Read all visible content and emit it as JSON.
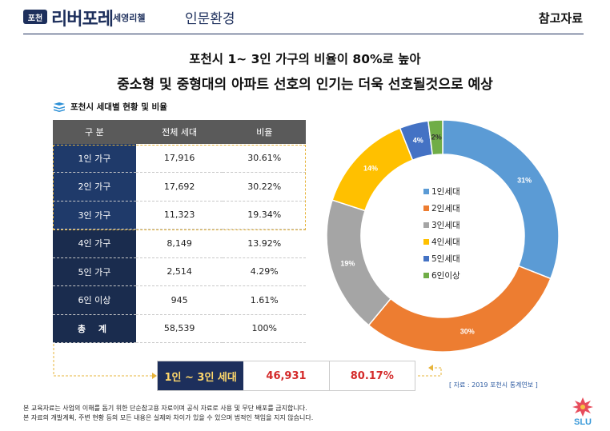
{
  "header": {
    "badge": "포천",
    "brand": "리버포레",
    "brand_sub": "세영리첼",
    "section": "인문환경",
    "tag": "참고자료"
  },
  "titles": {
    "line1": "포천시 1~ 3인 가구의 비율이 80%로 높아",
    "line2": "중소형 및 중형대의 아파트 선호의 인기는 더욱 선호될것으로 예상"
  },
  "subhead": "포천시 세대별 현황 및 비율",
  "table": {
    "headers": [
      "구 분",
      "전체 세대",
      "비율"
    ],
    "rows": [
      [
        "1인 가구",
        "17,916",
        "30.61%"
      ],
      [
        "2인 가구",
        "17,692",
        "30.22%"
      ],
      [
        "3인 가구",
        "11,323",
        "19.34%"
      ],
      [
        "4인 가구",
        "8,149",
        "13.92%"
      ],
      [
        "5인 가구",
        "2,514",
        "4.29%"
      ],
      [
        "6인 이상",
        "945",
        "1.61%"
      ],
      [
        "총 계",
        "58,539",
        "100%"
      ]
    ]
  },
  "summary": {
    "label": "1인 ~ 3인 세대",
    "value": "46,931",
    "percent": "80.17%"
  },
  "source": "[ 자료 : 2019 포천시 통계연보 ]",
  "notes": [
    "본 교육자료는 사업의 이해를 돕기 위한 단순참고용 자료이며 공식 자료로 사용 및 무단 배포를 금지합니다.",
    "본 자료의 개발계획, 주변 현황 등의 모든 내용은 실제와 차이가 있을 수 있으며 법적인 책임을 지지 않습니다."
  ],
  "chart_data": {
    "type": "pie",
    "categories": [
      "1인세대",
      "2인세대",
      "3인세대",
      "4인세대",
      "5인세대",
      "6인이상"
    ],
    "values": [
      31,
      30,
      19,
      14,
      4,
      2
    ],
    "data_labels": [
      "31%",
      "30%",
      "19%",
      "14%",
      "4%",
      "2%"
    ],
    "colors": [
      "#5b9bd5",
      "#ed7d31",
      "#a5a5a5",
      "#ffc000",
      "#4472c4",
      "#70ad47"
    ],
    "legend": "center"
  }
}
